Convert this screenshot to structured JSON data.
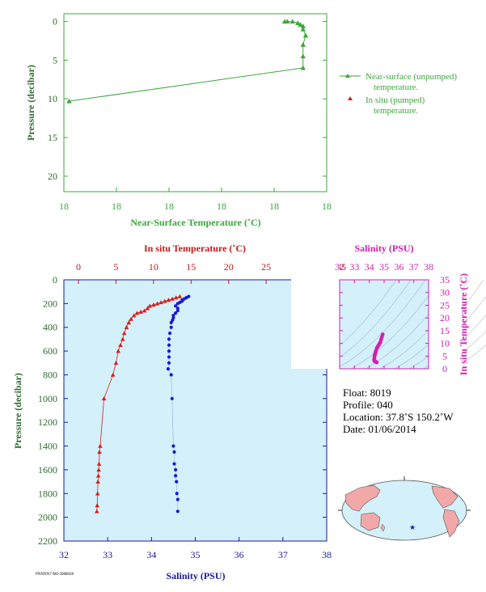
{
  "colors": {
    "green": "#3aa83a",
    "red": "#d42020",
    "blue": "#1a1ad0",
    "magenta": "#d020b0",
    "navy": "#1a1a9a",
    "dark_red": "#c41818",
    "dark_green": "#2e6a2e",
    "plot_bg": "#d4f0fa",
    "land": "#f2a8a8",
    "ocean": "#d4f0fa"
  },
  "chart_data": [
    {
      "type": "line",
      "xlabel": "Near-Surface Temperature (˚C)",
      "ylabel": "Pressure (decibar)",
      "x_tick_labels": [
        "18",
        "18",
        "18",
        "18",
        "18",
        "18"
      ],
      "y_ticks": [
        0,
        5,
        10,
        15,
        20
      ],
      "ylim": [
        22,
        -1
      ],
      "grid": false,
      "legend": [
        {
          "line1": "Near-surface (unpumped)",
          "line2": "temperature.",
          "marker": "triangle-line",
          "color": "green"
        },
        {
          "line1": "In situ (pumped)",
          "line2": "temperature.",
          "marker": "triangle",
          "color": "red"
        }
      ],
      "series": [
        {
          "name": "Near-surface (unpumped) temperature.",
          "x_frac": [
            0.84,
            0.85,
            0.87,
            0.89,
            0.9,
            0.91,
            0.91,
            0.92,
            0.91,
            0.91,
            0.91,
            0.02
          ],
          "y": [
            0.0,
            0.0,
            0.0,
            0.2,
            0.4,
            0.6,
            1.0,
            1.8,
            3.0,
            4.5,
            6.0,
            10.3
          ]
        }
      ]
    },
    {
      "type": "line",
      "top_xlabel": "In situ Temperature (˚C)",
      "bottom_xlabel": "Salinity (PSU)",
      "ylabel": "Pressure (decibar)",
      "temp_ticks": [
        0,
        5,
        10,
        15,
        20,
        25,
        30,
        35
      ],
      "sal_ticks": [
        32,
        33,
        34,
        35,
        36,
        37,
        38
      ],
      "y_ticks": [
        0,
        200,
        400,
        600,
        800,
        1000,
        1200,
        1400,
        1600,
        1800,
        2000,
        2200
      ],
      "temp_range": [
        0,
        35
      ],
      "sal_range": [
        32,
        38
      ],
      "ylim": [
        2200,
        0
      ],
      "series": [
        {
          "name": "In situ Temperature",
          "x": [
            13.5,
            13.0,
            12.5,
            12.0,
            11.5,
            11.0,
            10.5,
            10.0,
            9.5,
            9.2,
            8.8,
            8.3,
            7.8,
            7.4,
            7.0,
            6.7,
            6.4,
            6.1,
            5.9,
            5.6,
            5.3,
            5.0,
            4.6,
            3.4,
            2.9,
            2.8,
            2.75,
            2.7,
            2.65,
            2.6,
            2.55,
            2.5,
            2.45
          ],
          "y": [
            140,
            150,
            160,
            170,
            180,
            190,
            200,
            210,
            220,
            240,
            260,
            270,
            280,
            300,
            330,
            360,
            400,
            450,
            500,
            550,
            600,
            700,
            800,
            1000,
            1400,
            1450,
            1550,
            1600,
            1650,
            1700,
            1800,
            1900,
            1950
          ]
        },
        {
          "name": "Salinity",
          "x": [
            34.85,
            34.8,
            34.75,
            34.7,
            34.7,
            34.65,
            34.6,
            34.55,
            34.6,
            34.6,
            34.55,
            34.5,
            34.5,
            34.48,
            34.45,
            34.45,
            34.42,
            34.4,
            34.4,
            34.4,
            34.4,
            34.4,
            34.38,
            34.45,
            34.47,
            34.5,
            34.52,
            34.52,
            34.55,
            34.55,
            34.57,
            34.58,
            34.6,
            34.6
          ],
          "y": [
            140,
            150,
            160,
            170,
            180,
            190,
            200,
            220,
            240,
            260,
            280,
            300,
            320,
            340,
            360,
            400,
            450,
            500,
            550,
            600,
            650,
            700,
            750,
            800,
            1000,
            1400,
            1450,
            1550,
            1600,
            1650,
            1700,
            1800,
            1850,
            1950
          ]
        }
      ]
    },
    {
      "type": "scatter",
      "top_xlabel": "Salinity (PSU)",
      "right_ylabel": "In situ Temperature (˚C)",
      "x_ticks": [
        32,
        33,
        34,
        35,
        36,
        37,
        38
      ],
      "y_ticks": [
        0,
        5,
        10,
        15,
        20,
        25,
        30,
        35
      ],
      "xlim": [
        32,
        38
      ],
      "ylim": [
        0,
        35
      ],
      "series": [
        {
          "name": "T-S",
          "x": [
            34.9,
            34.85,
            34.8,
            34.75,
            34.7,
            34.65,
            34.6,
            34.55,
            34.5,
            34.45,
            34.42,
            34.4,
            34.38,
            34.36,
            34.35,
            34.34,
            34.33,
            34.35,
            34.4,
            34.45,
            34.5
          ],
          "y": [
            13.5,
            12.5,
            11.5,
            10.5,
            10.0,
            9.5,
            9.0,
            8.5,
            8.0,
            7.0,
            6.5,
            6.0,
            5.5,
            5.0,
            4.6,
            4.0,
            3.5,
            3.0,
            2.9,
            2.7,
            2.5
          ]
        }
      ]
    }
  ],
  "float_info": {
    "float_line": "Float:  8019",
    "profile_line": "Profile:  040",
    "location_line": "Location:  37.8˚S  150.2˚W",
    "date_line": "Date:  01/06/2014"
  },
  "footer_text": "PNNNN7-MJ-3088028"
}
